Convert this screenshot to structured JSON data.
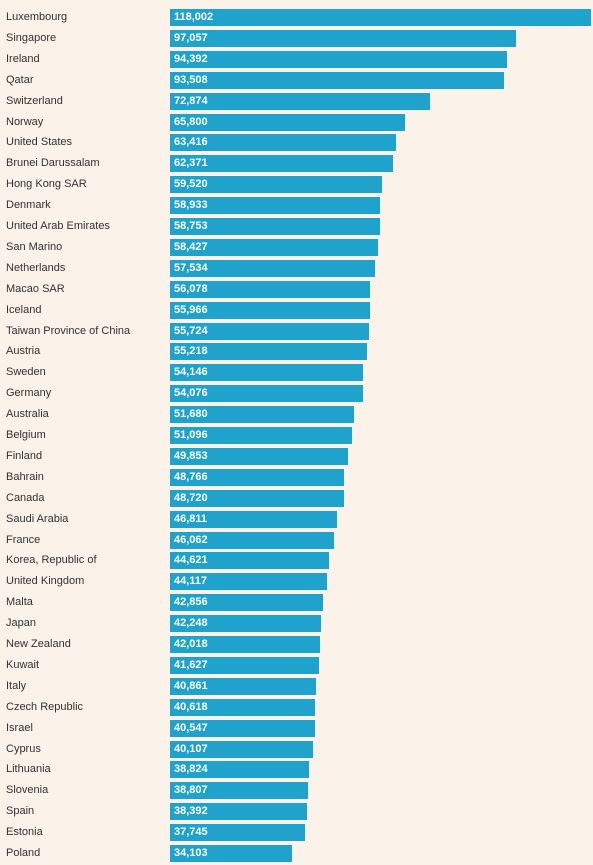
{
  "colors": {
    "background": "#fbf3ea",
    "bar": "#1fa3cc",
    "label_text": "#33302e",
    "value_text": "#ffffff"
  },
  "chart_data": {
    "type": "bar",
    "orientation": "horizontal",
    "title": "",
    "xlabel": "",
    "ylabel": "",
    "xlim": [
      0,
      118002
    ],
    "grid": false,
    "legend": "none",
    "categories": [
      "Luxembourg",
      "Singapore",
      "Ireland",
      "Qatar",
      "Switzerland",
      "Norway",
      "United States",
      "Brunei Darussalam",
      "Hong Kong SAR",
      "Denmark",
      "United Arab Emirates",
      "San Marino",
      "Netherlands",
      "Macao SAR",
      "Iceland",
      "Taiwan Province of China",
      "Austria",
      "Sweden",
      "Germany",
      "Australia",
      "Belgium",
      "Finland",
      "Bahrain",
      "Canada",
      "Saudi Arabia",
      "France",
      "Korea, Republic of",
      "United Kingdom",
      "Malta",
      "Japan",
      "New Zealand",
      "Kuwait",
      "Italy",
      "Czech Republic",
      "Israel",
      "Cyprus",
      "Lithuania",
      "Slovenia",
      "Spain",
      "Estonia",
      "Poland"
    ],
    "values": [
      118002,
      97057,
      94392,
      93508,
      72874,
      65800,
      63416,
      62371,
      59520,
      58933,
      58753,
      58427,
      57534,
      56078,
      55966,
      55724,
      55218,
      54146,
      54076,
      51680,
      51096,
      49853,
      48766,
      48720,
      46811,
      46062,
      44621,
      44117,
      42856,
      42248,
      42018,
      41627,
      40861,
      40618,
      40547,
      40107,
      38824,
      38807,
      38392,
      37745,
      34103
    ],
    "value_labels": [
      "118,002",
      "97,057",
      "94,392",
      "93,508",
      "72,874",
      "65,800",
      "63,416",
      "62,371",
      "59,520",
      "58,933",
      "58,753",
      "58,427",
      "57,534",
      "56,078",
      "55,966",
      "55,724",
      "55,218",
      "54,146",
      "54,076",
      "51,680",
      "51,096",
      "49,853",
      "48,766",
      "48,720",
      "46,811",
      "46,062",
      "44,621",
      "44,117",
      "42,856",
      "42,248",
      "42,018",
      "41,627",
      "40,861",
      "40,618",
      "40,547",
      "40,107",
      "38,824",
      "38,807",
      "38,392",
      "37,745",
      "34,103"
    ]
  }
}
